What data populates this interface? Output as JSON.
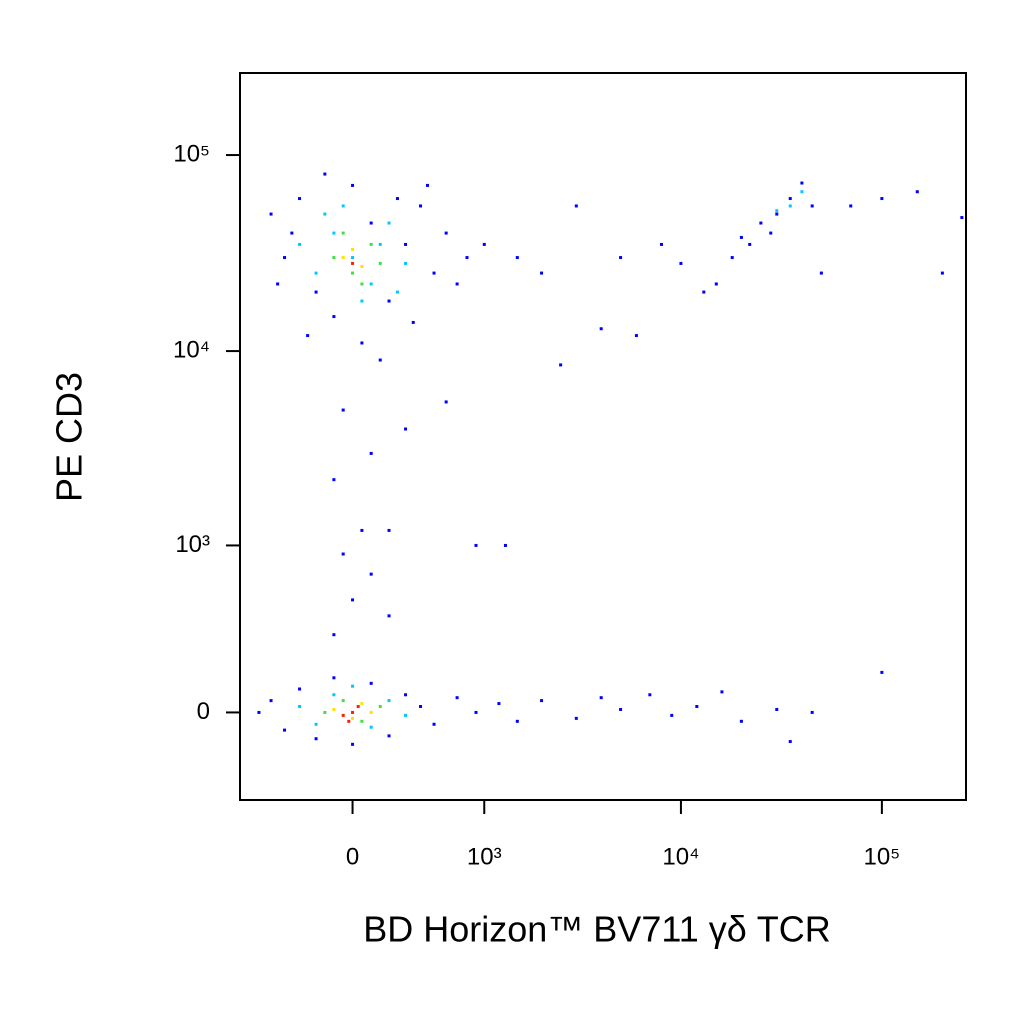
{
  "chart_data": {
    "type": "scatter",
    "scale": "biexponential",
    "xlabel": "BD Horizon™ BV711 γδ TCR",
    "ylabel": "PE CD3",
    "xlim": [
      -780,
      262144
    ],
    "ylim": [
      -350,
      262144
    ],
    "xticks": [
      0,
      {
        "value": 1000,
        "label": "10³"
      },
      {
        "value": 10000,
        "label": "10⁴"
      },
      {
        "value": 100000,
        "label": "10⁵"
      }
    ],
    "yticks": [
      0,
      {
        "value": 1000,
        "label": "10³"
      },
      {
        "value": 10000,
        "label": "10⁴"
      },
      {
        "value": 100000,
        "label": "10⁵"
      }
    ],
    "series": [
      {
        "color": "#0000ff",
        "x": [
          -500,
          -400,
          -300,
          -200,
          -100,
          0,
          100,
          200,
          300,
          400,
          500,
          600,
          800,
          -350,
          -250,
          -150,
          50,
          150,
          250,
          350,
          450,
          700,
          1000,
          1500,
          2000,
          -450,
          -50,
          100,
          -100,
          300,
          200,
          600,
          900,
          1300,
          3000,
          5000,
          8000,
          4000,
          6000,
          2500,
          10000,
          15000,
          13000,
          100000,
          150000,
          250000,
          200000,
          70000,
          50000,
          20000,
          22000,
          25000,
          30000,
          35000,
          40000,
          45000,
          28000,
          18000,
          -600,
          -500,
          -400,
          -300,
          -200,
          -100,
          0,
          100,
          200,
          300,
          400,
          500,
          700,
          900,
          1200,
          1500,
          2000,
          3000,
          4000,
          5000,
          7000,
          9000,
          12000,
          16000,
          20000,
          30000,
          45000,
          100000,
          35000,
          -100,
          0,
          100,
          200,
          50,
          -50
        ],
        "values": [
          50000,
          30000,
          60000,
          20000,
          15000,
          70000,
          45000,
          18000,
          35000,
          55000,
          25000,
          40000,
          30000,
          40000,
          12000,
          80000,
          11000,
          9000,
          60000,
          14000,
          70000,
          22000,
          35000,
          30000,
          25000,
          22000,
          5000,
          3000,
          2200,
          4000,
          1200,
          5500,
          1000,
          1000,
          55000,
          30000,
          35000,
          13000,
          12000,
          8500,
          28000,
          22000,
          20000,
          60000,
          65000,
          48000,
          25000,
          55000,
          25000,
          38000,
          35000,
          45000,
          50000,
          60000,
          72000,
          55000,
          40000,
          30000,
          0,
          40,
          -60,
          80,
          -90,
          120,
          -110,
          100,
          -80,
          60,
          20,
          -40,
          50,
          0,
          30,
          -30,
          40,
          -20,
          50,
          10,
          60,
          -10,
          20,
          70,
          -30,
          10,
          0,
          140,
          -100,
          300,
          500,
          700,
          400,
          1200,
          900
        ]
      },
      {
        "color": "#00c8ff",
        "x": [
          -300,
          -200,
          -100,
          0,
          100,
          200,
          300,
          -150,
          50,
          150,
          250,
          -50,
          30000,
          35000,
          40000,
          -300,
          -200,
          -100,
          100,
          200,
          300,
          0
        ],
        "values": [
          35000,
          25000,
          40000,
          30000,
          22000,
          45000,
          28000,
          50000,
          18000,
          35000,
          20000,
          55000,
          52000,
          55000,
          65000,
          20,
          -40,
          60,
          -50,
          40,
          -10,
          90
        ]
      },
      {
        "color": "#40e040",
        "x": [
          -100,
          0,
          100,
          -50,
          50,
          150,
          -150,
          -50,
          50,
          150
        ],
        "values": [
          30000,
          25000,
          35000,
          40000,
          22000,
          28000,
          0,
          40,
          -30,
          20
        ]
      },
      {
        "color": "#ffe000",
        "x": [
          -50,
          50,
          0,
          -100,
          0,
          50,
          100
        ],
        "values": [
          30000,
          27000,
          33000,
          10,
          -20,
          30,
          0
        ]
      },
      {
        "color": "#ff2000",
        "x": [
          0,
          -50,
          0,
          30,
          -20
        ],
        "values": [
          28000,
          -10,
          0,
          20,
          -30
        ]
      }
    ]
  }
}
